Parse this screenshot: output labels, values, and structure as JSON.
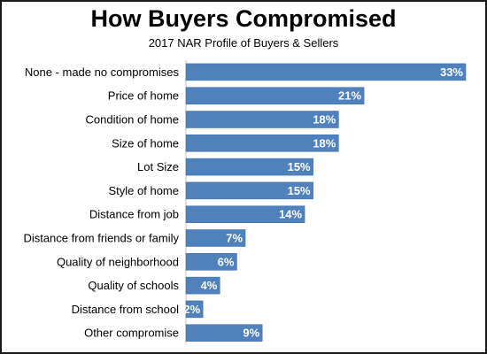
{
  "chart_data": {
    "type": "bar",
    "orientation": "horizontal",
    "title": "How Buyers Compromised",
    "subtitle": "2017 NAR Profile of Buyers & Sellers",
    "categories": [
      "None - made no compromises",
      "Price of home",
      "Condition of home",
      "Size of home",
      "Lot Size",
      "Style of home",
      "Distance from job",
      "Distance from friends or family",
      "Quality of neighborhood",
      "Quality of schools",
      "Distance from school",
      "Other compromise"
    ],
    "values": [
      33,
      21,
      18,
      18,
      15,
      15,
      14,
      7,
      6,
      4,
      2,
      9
    ],
    "value_suffix": "%",
    "xlim": [
      0,
      33
    ],
    "bar_color": "#4f81bd",
    "bar_border_color": "#3a6aa5",
    "label_color": "#ffffff",
    "legend": "none",
    "grid": false
  }
}
